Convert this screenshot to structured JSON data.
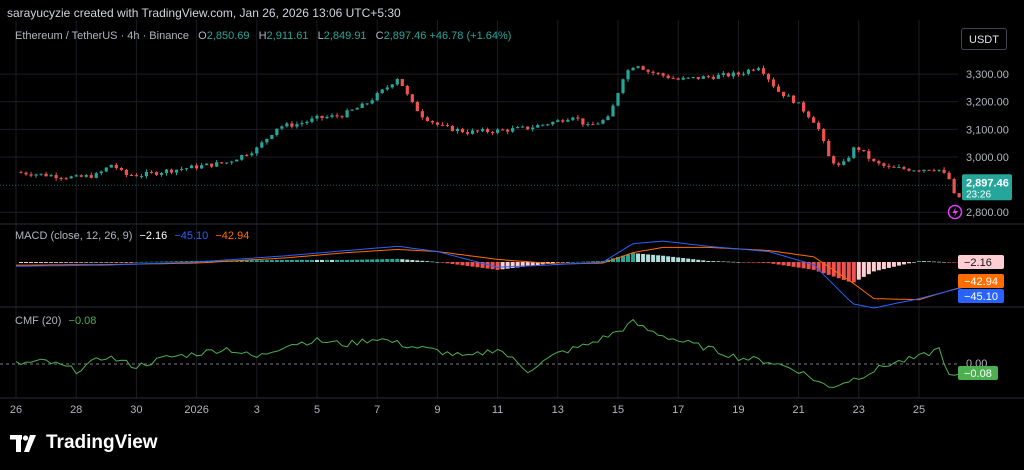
{
  "header": {
    "caption": "sarayucyzie created with TradingView.com, Jan 26, 2026 13:06 UTC+5:30"
  },
  "legend": {
    "symbol": "Ethereum / TetherUS · 4h · Binance",
    "o_label": "O",
    "o": "2,850.69",
    "h_label": "H",
    "h": "2,911.61",
    "l_label": "L",
    "l": "2,849.91",
    "c_label": "C",
    "c": "2,897.46",
    "change": "+46.78 (+1.64%)"
  },
  "currency_button": "USDT",
  "price_badge": {
    "price": "2,897.46",
    "countdown": "23:26",
    "color": "#26a69a"
  },
  "macd": {
    "title": "MACD (close, 12, 26, 9)",
    "hist": "−2.16",
    "macd": "−45.10",
    "signal": "−42.94",
    "hist_badge": "−2.16",
    "signal_badge": "−42.94",
    "macd_badge": "−45.10",
    "colors": {
      "macd": "#2962ff",
      "signal": "#ff6d00",
      "hist_up": "#26a69a",
      "hist_down": "#ff5252"
    }
  },
  "cmf": {
    "title": "CMF (20)",
    "value": "−0.08",
    "zero_label": "0.00",
    "badge": "−0.08",
    "color": "#4caf50"
  },
  "branding": {
    "name": "TradingView"
  },
  "colors": {
    "up": "#26a69a",
    "down": "#ef5350",
    "grid": "#1b1d24",
    "axis_text": "#b2b5be"
  },
  "chart_data": [
    {
      "type": "candlestick",
      "title": "Ethereum / TetherUS · 4h · Binance",
      "y_ticks": [
        "3,300.00",
        "3,200.00",
        "3,100.00",
        "3,000.00",
        "2,800.00"
      ],
      "y_tick_values": [
        3300,
        3200,
        3100,
        3000,
        2800
      ],
      "ylim": [
        2790,
        3380
      ],
      "x_ticks": [
        "26",
        "28",
        "30",
        "2026",
        "3",
        "5",
        "7",
        "9",
        "11",
        "13",
        "15",
        "17",
        "19",
        "21",
        "23",
        "25"
      ],
      "xlim_days": [
        0,
        31.7
      ],
      "anchors": [
        [
          0,
          2945
        ],
        [
          1,
          2935
        ],
        [
          2,
          2925
        ],
        [
          2.7,
          2935
        ],
        [
          3.2,
          2975
        ],
        [
          3.6,
          2935
        ],
        [
          4.2,
          2935
        ],
        [
          5,
          2950
        ],
        [
          6,
          2965
        ],
        [
          7,
          2980
        ],
        [
          8,
          3030
        ],
        [
          8.7,
          3110
        ],
        [
          9.4,
          3120
        ],
        [
          10,
          3140
        ],
        [
          10.8,
          3150
        ],
        [
          11.6,
          3190
        ],
        [
          12.3,
          3250
        ],
        [
          12.7,
          3290
        ],
        [
          13.1,
          3200
        ],
        [
          13.5,
          3150
        ],
        [
          14.1,
          3110
        ],
        [
          15,
          3090
        ],
        [
          16,
          3095
        ],
        [
          17,
          3105
        ],
        [
          18,
          3130
        ],
        [
          18.5,
          3150
        ],
        [
          19,
          3110
        ],
        [
          19.7,
          3140
        ],
        [
          20.2,
          3300
        ],
        [
          20.6,
          3340
        ],
        [
          21,
          3310
        ],
        [
          22,
          3280
        ],
        [
          23,
          3290
        ],
        [
          24,
          3300
        ],
        [
          24.7,
          3330
        ],
        [
          25.3,
          3240
        ],
        [
          25.9,
          3200
        ],
        [
          26.6,
          3120
        ],
        [
          27,
          3000
        ],
        [
          27.4,
          2960
        ],
        [
          27.9,
          3040
        ],
        [
          28.5,
          2980
        ],
        [
          29,
          2960
        ],
        [
          30,
          2955
        ],
        [
          30.6,
          2960
        ],
        [
          31,
          2920
        ],
        [
          31.2,
          2850
        ],
        [
          31.5,
          2860
        ],
        [
          31.7,
          2897
        ]
      ],
      "last_price": 2897.46
    },
    {
      "type": "line",
      "title": "MACD (close, 12, 26, 9)",
      "ylim": [
        -100,
        65
      ],
      "series": [
        {
          "name": "MACD",
          "points": [
            [
              0,
              -8
            ],
            [
              3,
              -6
            ],
            [
              6,
              0
            ],
            [
              9,
              12
            ],
            [
              11,
              22
            ],
            [
              12.7,
              30
            ],
            [
              14,
              20
            ],
            [
              16,
              -10
            ],
            [
              18,
              -5
            ],
            [
              19.5,
              0
            ],
            [
              20.5,
              35
            ],
            [
              21.5,
              40
            ],
            [
              23,
              30
            ],
            [
              25,
              20
            ],
            [
              26.5,
              -5
            ],
            [
              27.8,
              -80
            ],
            [
              28.5,
              -88
            ],
            [
              30,
              -70
            ],
            [
              31.7,
              -45
            ]
          ]
        },
        {
          "name": "Signal",
          "points": [
            [
              0,
              -6
            ],
            [
              3,
              -5
            ],
            [
              6,
              -2
            ],
            [
              9,
              8
            ],
            [
              11,
              18
            ],
            [
              12.7,
              24
            ],
            [
              14,
              20
            ],
            [
              16,
              5
            ],
            [
              18,
              -4
            ],
            [
              19.5,
              -2
            ],
            [
              20.5,
              18
            ],
            [
              21.5,
              28
            ],
            [
              23,
              28
            ],
            [
              25,
              22
            ],
            [
              26.5,
              10
            ],
            [
              27.8,
              -40
            ],
            [
              28.5,
              -70
            ],
            [
              30,
              -72
            ],
            [
              31.7,
              -43
            ]
          ]
        }
      ]
    },
    {
      "type": "line",
      "title": "CMF (20)",
      "ylim": [
        -0.3,
        0.4
      ],
      "series": [
        {
          "name": "CMF",
          "points": [
            [
              0,
              0.0
            ],
            [
              1,
              0.02
            ],
            [
              2,
              -0.05
            ],
            [
              3,
              0.06
            ],
            [
              4,
              -0.02
            ],
            [
              5,
              0.05
            ],
            [
              6,
              0.08
            ],
            [
              7,
              0.12
            ],
            [
              8,
              0.05
            ],
            [
              9,
              0.15
            ],
            [
              10,
              0.18
            ],
            [
              11,
              0.15
            ],
            [
              12,
              0.2
            ],
            [
              13,
              0.14
            ],
            [
              14,
              0.1
            ],
            [
              15,
              0.05
            ],
            [
              16,
              0.12
            ],
            [
              17,
              -0.05
            ],
            [
              18,
              0.08
            ],
            [
              19,
              0.15
            ],
            [
              20,
              0.25
            ],
            [
              20.5,
              0.32
            ],
            [
              21,
              0.26
            ],
            [
              22,
              0.18
            ],
            [
              23,
              0.12
            ],
            [
              24,
              0.05
            ],
            [
              25,
              0.02
            ],
            [
              26,
              -0.05
            ],
            [
              27,
              -0.18
            ],
            [
              28,
              -0.1
            ],
            [
              29,
              0.0
            ],
            [
              30,
              0.05
            ],
            [
              30.7,
              0.12
            ],
            [
              31,
              -0.1
            ],
            [
              31.7,
              -0.08
            ]
          ]
        }
      ]
    }
  ]
}
